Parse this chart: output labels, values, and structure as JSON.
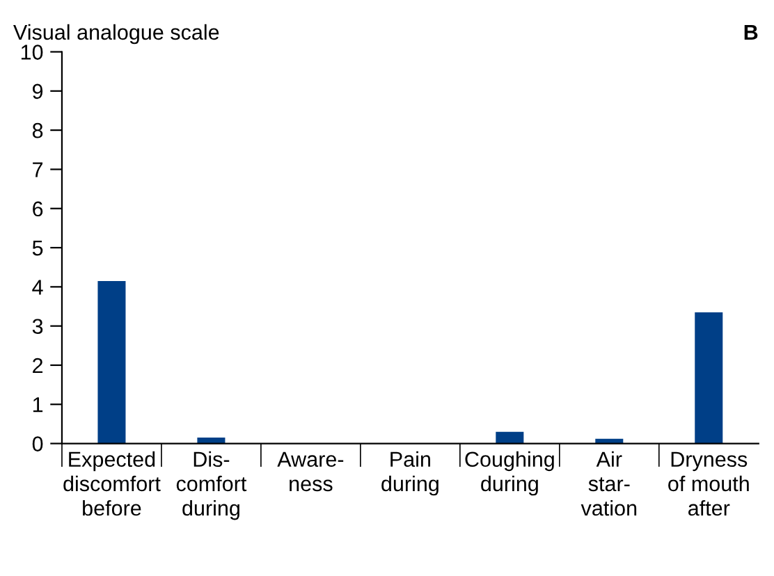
{
  "chart_data": {
    "type": "bar",
    "ylabel": "Visual analogue scale",
    "categories": [
      "Expected\ndiscomfort\nbefore",
      "Dis-\ncomfort\nduring",
      "Aware-\nness",
      "Pain\nduring",
      "Coughing\nduring",
      "Air\nstar-\nvation",
      "Dryness\nof mouth\nafter"
    ],
    "values": [
      4.15,
      0.15,
      0,
      0,
      0.3,
      0.12,
      3.35
    ],
    "color": "#003f87",
    "ylim": [
      0,
      10
    ],
    "yticks": [
      0,
      1,
      2,
      3,
      4,
      5,
      6,
      7,
      8,
      9,
      10
    ],
    "grid": false,
    "annotations": [
      "B"
    ]
  }
}
